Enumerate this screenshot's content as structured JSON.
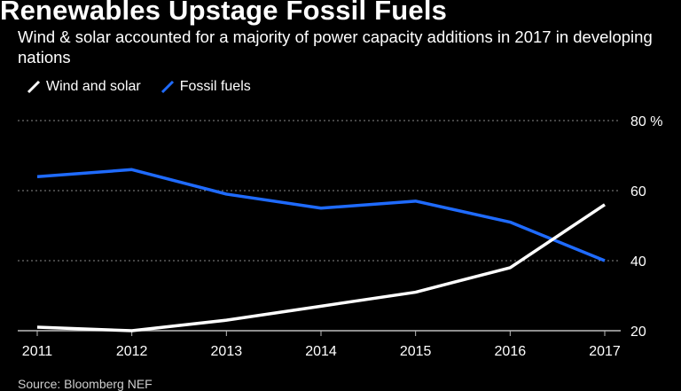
{
  "header": {
    "title": "Renewables Upstage Fossil Fuels",
    "subtitle": "Wind & solar accounted for a majority of power capacity additions in 2017 in developing nations"
  },
  "footer": {
    "source": "Source: Bloomberg NEF"
  },
  "colors": {
    "background": "#000000",
    "wind_solar": "#ffffff",
    "fossil": "#1f6bff",
    "grid": "#8a8a8a",
    "text": "#ffffff"
  },
  "chart_data": {
    "type": "line",
    "x": [
      "2011",
      "2012",
      "2013",
      "2014",
      "2015",
      "2016",
      "2017"
    ],
    "series": [
      {
        "name": "Wind and solar",
        "color": "#ffffff",
        "values": [
          21,
          20,
          23,
          27,
          31,
          38,
          56
        ]
      },
      {
        "name": "Fossil fuels",
        "color": "#1f6bff",
        "values": [
          64,
          66,
          59,
          55,
          57,
          51,
          40
        ]
      }
    ],
    "ylim": [
      20,
      80
    ],
    "yticks": [
      {
        "value": 80,
        "label": "80 %"
      },
      {
        "value": 60,
        "label": "60"
      },
      {
        "value": 40,
        "label": "40"
      },
      {
        "value": 20,
        "label": "20"
      }
    ],
    "legend_position": "top-left",
    "grid": "horizontal dotted"
  }
}
